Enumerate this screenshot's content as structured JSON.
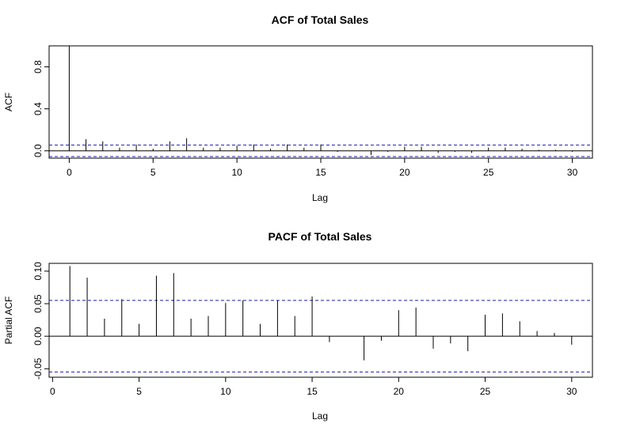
{
  "chart_data": [
    {
      "type": "bar",
      "title": "ACF of Total Sales",
      "xlabel": "Lag",
      "ylabel": "ACF",
      "xlim": [
        -1.2,
        31.2
      ],
      "ylim": [
        -0.07,
        1.0
      ],
      "x_ticks": [
        "0",
        "5",
        "10",
        "15",
        "20",
        "25",
        "30"
      ],
      "y_ticks": [
        "0.0",
        "0.4",
        "0.8"
      ],
      "confidence_bound": 0.055,
      "lags": [
        0,
        1,
        2,
        3,
        4,
        5,
        6,
        7,
        8,
        9,
        10,
        11,
        12,
        13,
        14,
        15,
        16,
        17,
        18,
        19,
        20,
        21,
        22,
        23,
        24,
        25,
        26,
        27,
        28,
        29,
        30
      ],
      "values": [
        1.0,
        0.11,
        0.09,
        0.03,
        0.06,
        0.02,
        0.09,
        0.12,
        0.03,
        0.03,
        0.05,
        0.06,
        0.02,
        0.06,
        0.03,
        0.06,
        -0.01,
        0.0,
        -0.04,
        -0.01,
        0.04,
        0.04,
        -0.02,
        -0.01,
        -0.02,
        0.03,
        0.03,
        0.02,
        0.01,
        0.01,
        -0.01
      ]
    },
    {
      "type": "bar",
      "title": "PACF of Total Sales",
      "xlabel": "Lag",
      "ylabel": "Partial ACF",
      "xlim": [
        -0.2,
        31.2
      ],
      "ylim": [
        -0.063,
        0.112
      ],
      "x_ticks": [
        "0",
        "5",
        "10",
        "15",
        "20",
        "25",
        "30"
      ],
      "y_ticks": [
        "-0.05",
        "0.00",
        "0.05",
        "0.10"
      ],
      "confidence_bound": 0.055,
      "lags": [
        1,
        2,
        3,
        4,
        5,
        6,
        7,
        8,
        9,
        10,
        11,
        12,
        13,
        14,
        15,
        16,
        17,
        18,
        19,
        20,
        21,
        22,
        23,
        24,
        25,
        26,
        27,
        28,
        29,
        30
      ],
      "values": [
        0.108,
        0.09,
        0.027,
        0.057,
        0.019,
        0.093,
        0.097,
        0.027,
        0.031,
        0.051,
        0.055,
        0.019,
        0.055,
        0.031,
        0.061,
        -0.009,
        0.0,
        -0.037,
        -0.007,
        0.04,
        0.044,
        -0.019,
        -0.011,
        -0.023,
        0.033,
        0.035,
        0.023,
        0.008,
        0.005,
        -0.013
      ]
    }
  ]
}
